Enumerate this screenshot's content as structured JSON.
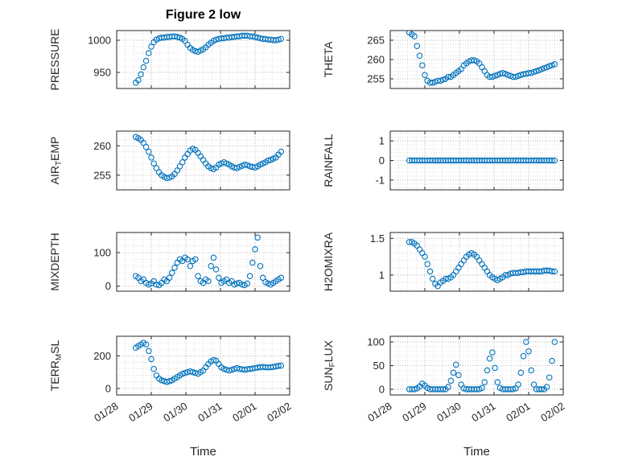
{
  "figure": {
    "title": "Figure 2 low",
    "colors": {
      "marker": "#0072BD",
      "axis": "#262626",
      "text": "#262626",
      "grid_major": "#a6a6a6",
      "grid_minor": "#d9d9d9"
    }
  },
  "chart_data": {
    "type": "scatter",
    "marker": "open-circle",
    "grid": "major+minor dotted",
    "layout": "4x2 subplot grid, shared x axis of dates",
    "shared_x": {
      "xlabel": "Time",
      "xlim": [
        0,
        5
      ],
      "ticks": [
        0,
        1,
        2,
        3,
        4,
        5
      ],
      "tick_labels": [
        "01/28",
        "01/29",
        "01/30",
        "01/31",
        "02/01",
        "02/02"
      ],
      "x": [
        0.55,
        0.625,
        0.7,
        0.775,
        0.85,
        0.925,
        1.0,
        1.075,
        1.15,
        1.225,
        1.3,
        1.375,
        1.45,
        1.525,
        1.6,
        1.675,
        1.75,
        1.825,
        1.9,
        1.975,
        2.05,
        2.125,
        2.2,
        2.275,
        2.35,
        2.425,
        2.5,
        2.575,
        2.65,
        2.725,
        2.8,
        2.875,
        2.95,
        3.025,
        3.1,
        3.175,
        3.25,
        3.325,
        3.4,
        3.475,
        3.55,
        3.625,
        3.7,
        3.775,
        3.85,
        3.925,
        4.0,
        4.075,
        4.15,
        4.225,
        4.3,
        4.375,
        4.45,
        4.525,
        4.6,
        4.675,
        4.75
      ]
    },
    "subplots": [
      {
        "name": "PRESSURE",
        "ylabel_parts": [
          {
            "text": "PRESSURE",
            "sub": false
          }
        ],
        "yticks": [
          950,
          1000
        ],
        "ytick_labels": [
          "950",
          "1000"
        ],
        "ylim": [
          925,
          1015
        ],
        "y": [
          934,
          938,
          947,
          958,
          968,
          980,
          990,
          997,
          1001,
          1003,
          1004,
          1004,
          1005,
          1005,
          1006,
          1006,
          1005,
          1004,
          1002,
          999,
          993,
          988,
          985,
          983,
          982,
          984,
          986,
          989,
          993,
          996,
          999,
          1001,
          1002,
          1003,
          1003,
          1004,
          1004,
          1005,
          1005,
          1006,
          1006,
          1007,
          1007,
          1007,
          1006,
          1006,
          1005,
          1004,
          1003,
          1002,
          1002,
          1001,
          1001,
          1000,
          1000,
          1001,
          1002
        ]
      },
      {
        "name": "THETA",
        "ylabel_parts": [
          {
            "text": "THETA",
            "sub": false
          }
        ],
        "yticks": [
          255,
          260,
          265
        ],
        "ytick_labels": [
          "255",
          "260",
          "265"
        ],
        "ylim": [
          252.5,
          267.5
        ],
        "y": [
          267,
          266.5,
          266,
          263.5,
          261,
          258.5,
          256,
          254.5,
          254,
          254,
          254.2,
          254.5,
          254.5,
          254.8,
          255,
          255.5,
          255.5,
          256,
          256.5,
          257,
          257.5,
          258.5,
          259,
          259.5,
          259.8,
          259.8,
          259.5,
          259,
          258,
          257,
          256,
          255.5,
          255.5,
          255.8,
          256,
          256.3,
          256.5,
          256.3,
          256,
          255.8,
          255.5,
          255.5,
          255.8,
          256,
          256.2,
          256.3,
          256.5,
          256.5,
          256.8,
          257,
          257.2,
          257.5,
          257.8,
          258,
          258.3,
          258.5,
          258.8
        ]
      },
      {
        "name": "AIRTEMP",
        "ylabel_parts": [
          {
            "text": "AIR",
            "sub": false
          },
          {
            "text": "T",
            "sub": true
          },
          {
            "text": "EMP",
            "sub": false
          }
        ],
        "yticks": [
          255,
          260
        ],
        "ytick_labels": [
          "255",
          "260"
        ],
        "ylim": [
          252.5,
          262.5
        ],
        "y": [
          261.5,
          261.3,
          261,
          260.5,
          259.8,
          259,
          258,
          257,
          256.2,
          255.5,
          255,
          254.7,
          254.5,
          254.6,
          254.8,
          255.2,
          255.8,
          256.5,
          257.2,
          258,
          258.6,
          259.2,
          259.5,
          259.3,
          258.8,
          258.2,
          257.6,
          257,
          256.5,
          256.2,
          256,
          256.3,
          256.8,
          257,
          257.2,
          257,
          256.8,
          256.5,
          256.3,
          256.2,
          256.4,
          256.6,
          256.8,
          256.7,
          256.5,
          256.4,
          256.3,
          256.5,
          256.8,
          257,
          257.2,
          257.5,
          257.6,
          257.8,
          258,
          258.5,
          259
        ]
      },
      {
        "name": "RAINFALL",
        "ylabel_parts": [
          {
            "text": "RAINFALL",
            "sub": false
          }
        ],
        "yticks": [
          -1,
          0,
          1
        ],
        "ytick_labels": [
          "-1",
          "0",
          "1"
        ],
        "ylim": [
          -1.5,
          1.5
        ],
        "y": [
          0,
          0,
          0,
          0,
          0,
          0,
          0,
          0,
          0,
          0,
          0,
          0,
          0,
          0,
          0,
          0,
          0,
          0,
          0,
          0,
          0,
          0,
          0,
          0,
          0,
          0,
          0,
          0,
          0,
          0,
          0,
          0,
          0,
          0,
          0,
          0,
          0,
          0,
          0,
          0,
          0,
          0,
          0,
          0,
          0,
          0,
          0,
          0,
          0,
          0,
          0,
          0,
          0,
          0,
          0,
          0,
          0
        ]
      },
      {
        "name": "MIXDEPTH",
        "ylabel_parts": [
          {
            "text": "MIXDEPTH",
            "sub": false
          }
        ],
        "yticks": [
          0,
          100
        ],
        "ytick_labels": [
          "0",
          "100"
        ],
        "ylim": [
          -15,
          160
        ],
        "y": [
          30,
          25,
          15,
          20,
          10,
          5,
          8,
          15,
          5,
          3,
          10,
          20,
          15,
          25,
          40,
          55,
          70,
          80,
          75,
          85,
          80,
          60,
          75,
          80,
          30,
          15,
          10,
          20,
          15,
          60,
          85,
          50,
          25,
          10,
          15,
          20,
          10,
          15,
          5,
          8,
          10,
          5,
          3,
          8,
          30,
          70,
          110,
          145,
          60,
          25,
          12,
          8,
          5,
          10,
          15,
          20,
          25
        ]
      },
      {
        "name": "H2OMIXRA",
        "ylabel_parts": [
          {
            "text": "H2OMIXRA",
            "sub": false
          }
        ],
        "yticks": [
          1,
          1.5
        ],
        "ytick_labels": [
          "1",
          "1.5"
        ],
        "ylim": [
          0.78,
          1.58
        ],
        "y": [
          1.45,
          1.45,
          1.43,
          1.4,
          1.35,
          1.3,
          1.25,
          1.15,
          1.05,
          0.95,
          0.88,
          0.85,
          0.9,
          0.92,
          0.95,
          0.95,
          0.97,
          1.0,
          1.05,
          1.1,
          1.15,
          1.2,
          1.25,
          1.28,
          1.3,
          1.28,
          1.25,
          1.2,
          1.15,
          1.1,
          1.05,
          1.0,
          0.97,
          0.95,
          0.93,
          0.95,
          0.97,
          1.0,
          1.0,
          1.02,
          1.03,
          1.03,
          1.03,
          1.04,
          1.04,
          1.05,
          1.05,
          1.05,
          1.05,
          1.05,
          1.05,
          1.05,
          1.06,
          1.06,
          1.06,
          1.05,
          1.05
        ]
      },
      {
        "name": "TERR_MSL",
        "ylabel_parts": [
          {
            "text": "TERR",
            "sub": false
          },
          {
            "text": "M",
            "sub": true
          },
          {
            "text": "SL",
            "sub": false
          }
        ],
        "yticks": [
          0,
          200
        ],
        "ytick_labels": [
          "0",
          "200"
        ],
        "ylim": [
          -40,
          320
        ],
        "y": [
          250,
          260,
          270,
          280,
          270,
          230,
          180,
          120,
          80,
          60,
          50,
          45,
          40,
          45,
          50,
          60,
          70,
          80,
          90,
          95,
          100,
          105,
          100,
          95,
          90,
          100,
          110,
          130,
          150,
          165,
          175,
          170,
          150,
          130,
          120,
          115,
          110,
          115,
          120,
          125,
          120,
          118,
          115,
          118,
          120,
          122,
          125,
          128,
          130,
          132,
          130,
          128,
          130,
          132,
          135,
          138,
          140
        ]
      },
      {
        "name": "SUN_FLUX",
        "ylabel_parts": [
          {
            "text": "SUN",
            "sub": false
          },
          {
            "text": "F",
            "sub": true
          },
          {
            "text": "LUX",
            "sub": false
          }
        ],
        "yticks": [
          0,
          50,
          100
        ],
        "ytick_labels": [
          "0",
          "50",
          "100"
        ],
        "ylim": [
          -12,
          112
        ],
        "y": [
          0,
          0,
          0,
          2,
          6,
          12,
          8,
          3,
          0,
          0,
          0,
          0,
          0,
          0,
          0,
          5,
          18,
          35,
          52,
          30,
          10,
          2,
          0,
          0,
          0,
          0,
          0,
          0,
          3,
          15,
          40,
          65,
          78,
          45,
          15,
          3,
          0,
          0,
          0,
          0,
          0,
          2,
          10,
          35,
          70,
          100,
          80,
          40,
          10,
          0,
          0,
          0,
          0,
          5,
          25,
          60,
          100
        ]
      }
    ]
  }
}
